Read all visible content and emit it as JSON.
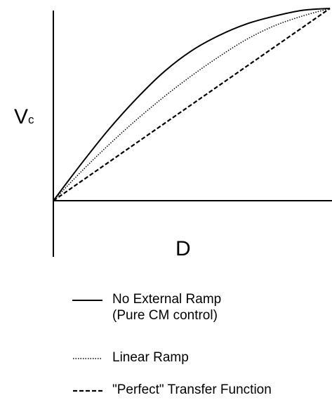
{
  "chart_data": {
    "type": "line",
    "ylabel_main": "V",
    "ylabel_sub": "c",
    "xlabel": "D",
    "grid": false,
    "legend_position": "bottom",
    "xlim": [
      0,
      1
    ],
    "ylim": [
      0,
      1
    ],
    "series": [
      {
        "name": "No External Ramp",
        "name_line2": "(Pure CM control)",
        "style": "solid",
        "x": [
          0,
          0.1,
          0.2,
          0.3,
          0.4,
          0.5,
          0.6,
          0.7,
          0.8,
          0.9,
          1.0
        ],
        "y": [
          0,
          0.19,
          0.37,
          0.53,
          0.67,
          0.78,
          0.86,
          0.92,
          0.96,
          0.99,
          1.0
        ]
      },
      {
        "name": "Linear Ramp",
        "style": "dotted",
        "x": [
          0,
          0.1,
          0.2,
          0.3,
          0.4,
          0.5,
          0.6,
          0.7,
          0.8,
          0.9,
          1.0
        ],
        "y": [
          0,
          0.15,
          0.29,
          0.42,
          0.54,
          0.65,
          0.75,
          0.84,
          0.91,
          0.96,
          1.0
        ]
      },
      {
        "name": "\"Perfect\" Transfer Function",
        "style": "dashed",
        "x": [
          0,
          1
        ],
        "y": [
          0,
          1
        ]
      }
    ]
  }
}
